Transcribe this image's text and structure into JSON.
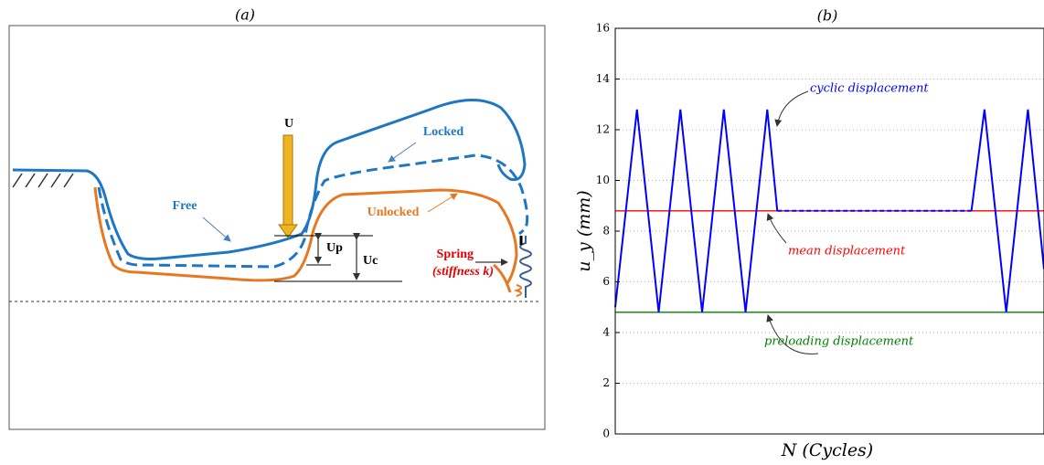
{
  "diagram": {
    "title": "(a)",
    "labels": {
      "load": "U",
      "locked": "Locked",
      "free": "Free",
      "unlocked": "Unlocked",
      "up": "Up",
      "uc": "Uc",
      "spring": "Spring",
      "stiffness": "(stiffness  k)"
    }
  },
  "chart_data": {
    "type": "line",
    "title": "(b)",
    "x_label": "N (Cycles)",
    "y_label": "u_y (mm)",
    "xlim": [
      0,
      9.87
    ],
    "ylim": [
      0,
      16
    ],
    "yticks": [
      0,
      2,
      4,
      6,
      8,
      10,
      12,
      14,
      16
    ],
    "grid": true,
    "series": [
      {
        "color": "#0000ff",
        "dashed": false,
        "x": [
          0,
          0.5,
          1,
          1.5,
          2,
          2.5,
          3,
          3.5,
          3.73
        ],
        "values": [
          5,
          12.8,
          4.8,
          12.8,
          4.8,
          12.8,
          4.8,
          12.8,
          8.8
        ]
      },
      {
        "color": "#0000ff",
        "dashed": true,
        "x": [
          3.73,
          8.2
        ],
        "values": [
          8.8,
          8.8
        ]
      },
      {
        "color": "#0000ff",
        "dashed": false,
        "x": [
          8.2,
          8.5,
          9,
          9.5,
          9.87
        ],
        "values": [
          8.8,
          12.8,
          4.8,
          12.8,
          6.5
        ]
      }
    ],
    "hlines": [
      {
        "value": 8.8,
        "color": "#ff0000"
      },
      {
        "value": 4.8,
        "color": "#008000"
      }
    ],
    "annotations": [
      "cyclic displacement",
      "mean displacement",
      "preloading displacement"
    ]
  }
}
